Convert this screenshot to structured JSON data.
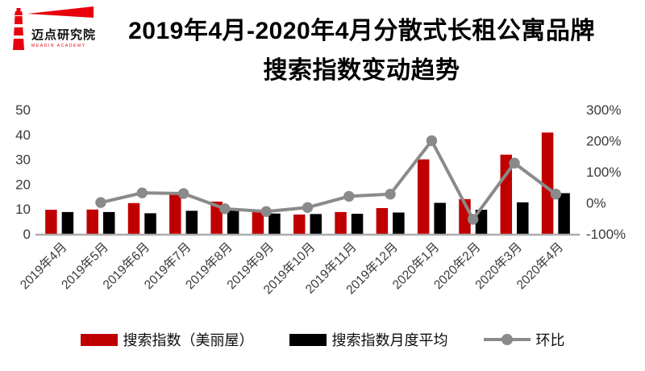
{
  "logo": {
    "text": "迈点研究院",
    "subtext": "MEADIN ACADEMY",
    "color": "#e8000d"
  },
  "title": {
    "line1": "2019年4月-2020年4月分散式长租公寓品牌",
    "line2": "搜索指数变动趋势"
  },
  "chart_data": {
    "type": "bar",
    "subtype": "combo-bar-line-dual-axis",
    "categories": [
      "2019年4月",
      "2019年5月",
      "2019年6月",
      "2019年7月",
      "2019年8月",
      "2019年9月",
      "2019年10月",
      "2019年11月",
      "2019年12月",
      "2020年1月",
      "2020年2月",
      "2020年3月",
      "2020年4月"
    ],
    "series": [
      {
        "name": "搜索指数（美丽屋）",
        "type": "bar",
        "axis": "left",
        "color": "#C00000",
        "values": [
          9.7,
          9.8,
          12.4,
          16.0,
          13.0,
          9.0,
          7.8,
          8.8,
          10.4,
          30.0,
          14.0,
          31.9,
          40.8
        ]
      },
      {
        "name": "搜索指数月度平均",
        "type": "bar",
        "axis": "left",
        "color": "#000000",
        "values": [
          8.8,
          8.8,
          8.3,
          9.3,
          9.7,
          8.2,
          8.0,
          8.1,
          8.6,
          12.5,
          9.7,
          12.7,
          16.4
        ]
      },
      {
        "name": "环比",
        "type": "line",
        "axis": "right",
        "color": "#8A8A8A",
        "unit": "%",
        "values": [
          null,
          1,
          32,
          30,
          -19,
          -28,
          -15,
          21,
          28,
          200,
          -53,
          128,
          28
        ]
      }
    ],
    "left_axis": {
      "min": 0,
      "max": 50,
      "step": 10,
      "tick_labels": [
        "0",
        "10",
        "20",
        "30",
        "40",
        "50"
      ]
    },
    "right_axis": {
      "min": -100,
      "max": 300,
      "step": 100,
      "tick_labels": [
        "-100%",
        "0%",
        "100%",
        "200%",
        "300%"
      ]
    },
    "legend": {
      "position": "bottom",
      "items": [
        "搜索指数（美丽屋）",
        "搜索指数月度平均",
        "环比"
      ]
    },
    "grid": false,
    "xlabel": "",
    "ylabel": ""
  },
  "colors": {
    "bar_red": "#C00000",
    "bar_black": "#000000",
    "line_gray": "#8A8A8A",
    "axis_line": "#ACACAC",
    "axis_text": "#3A3A3A",
    "logo_red": "#e8000d"
  }
}
